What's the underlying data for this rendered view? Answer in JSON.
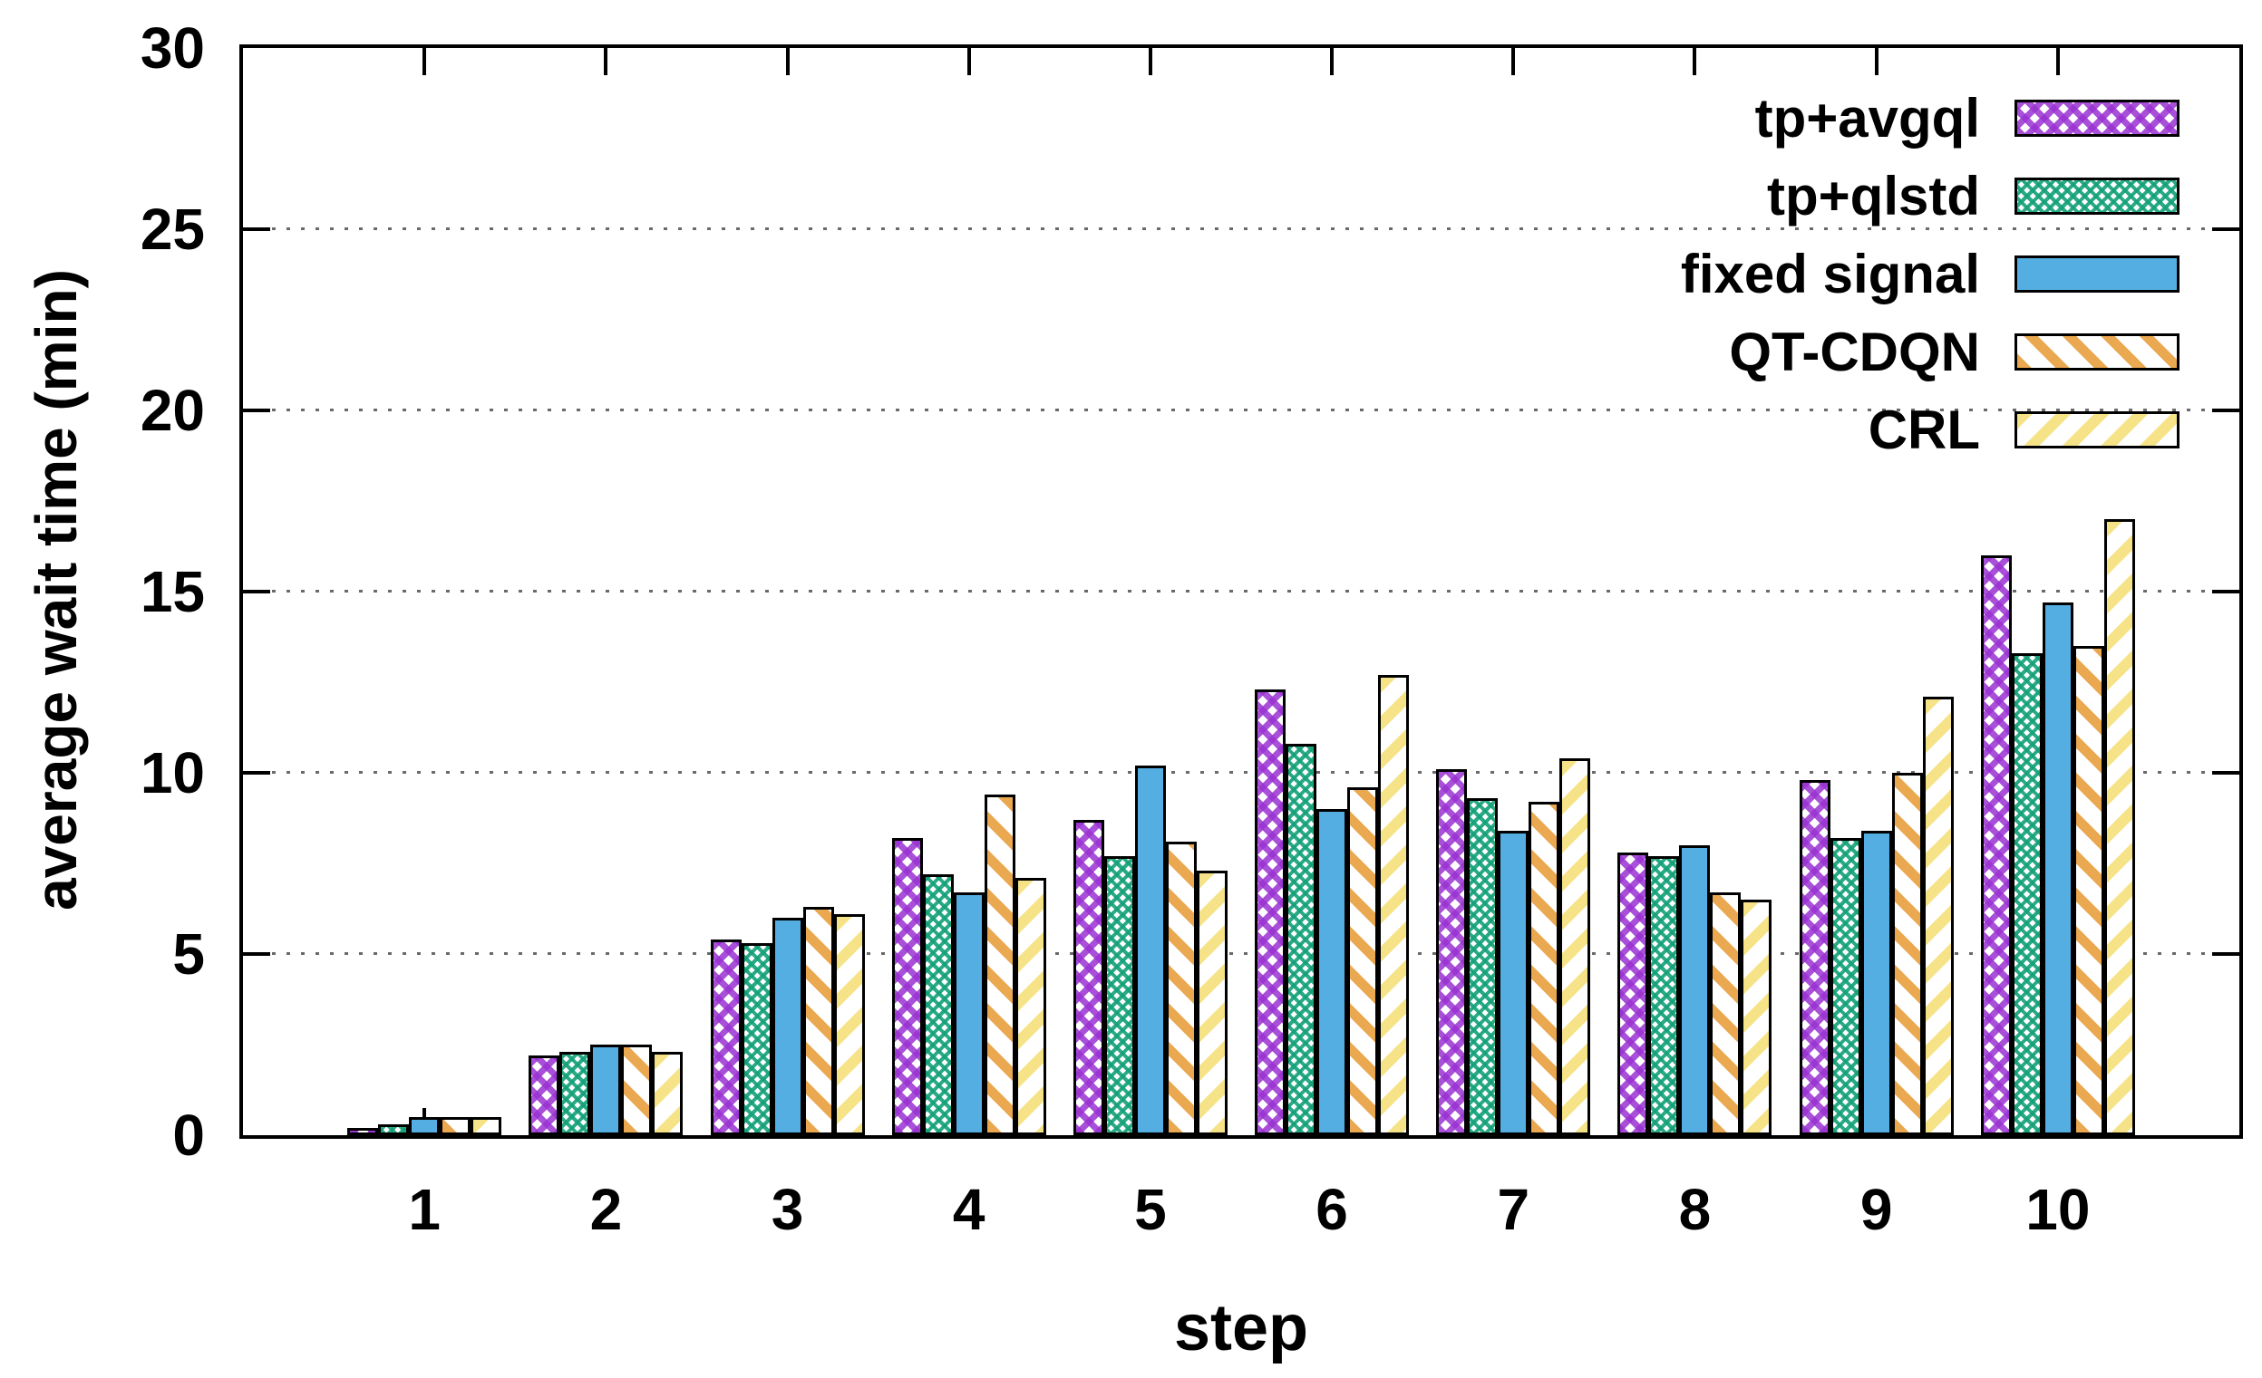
{
  "chart_data": {
    "type": "bar",
    "title": "",
    "xlabel": "step",
    "ylabel": "average wait time (min)",
    "categories": [
      "1",
      "2",
      "3",
      "4",
      "5",
      "6",
      "7",
      "8",
      "9",
      "10"
    ],
    "ylim": [
      0,
      30
    ],
    "yticks": [
      0,
      5,
      10,
      15,
      20,
      25,
      30
    ],
    "grid_values": [
      5,
      10,
      15,
      20,
      25
    ],
    "grid_style": "dotted horizontal gray lines",
    "legend_position": "top-right inside plot",
    "series": [
      {
        "name": "tp+avgql",
        "pattern": "purple-crosshatch",
        "color": "#9a32d2",
        "values": [
          0.2,
          2.2,
          5.4,
          8.2,
          8.7,
          12.3,
          10.1,
          7.8,
          9.8,
          16.0
        ]
      },
      {
        "name": "tp+qlstd",
        "pattern": "green-checker",
        "color": "#13a078",
        "values": [
          0.3,
          2.3,
          5.3,
          7.2,
          7.7,
          10.8,
          9.3,
          7.7,
          8.2,
          13.3
        ]
      },
      {
        "name": "fixed signal",
        "pattern": "solid",
        "color": "#55aee2",
        "values": [
          0.5,
          2.5,
          6.0,
          6.7,
          10.2,
          9.0,
          8.4,
          8.0,
          8.4,
          14.7
        ]
      },
      {
        "name": "QT-CDQN",
        "pattern": "orange-diagonal-down",
        "color": "#eaa851",
        "values": [
          0.5,
          2.5,
          6.3,
          9.4,
          8.1,
          9.6,
          9.2,
          6.7,
          10.0,
          13.5
        ]
      },
      {
        "name": "CRL",
        "pattern": "yellow-diagonal-up",
        "color": "#f6e388",
        "values": [
          0.5,
          2.3,
          6.1,
          7.1,
          7.3,
          12.7,
          10.4,
          6.5,
          12.1,
          17.0
        ]
      }
    ]
  },
  "axis_colors": {
    "border": "#000000",
    "grid": "#6a6a6a",
    "text": "#000000"
  }
}
